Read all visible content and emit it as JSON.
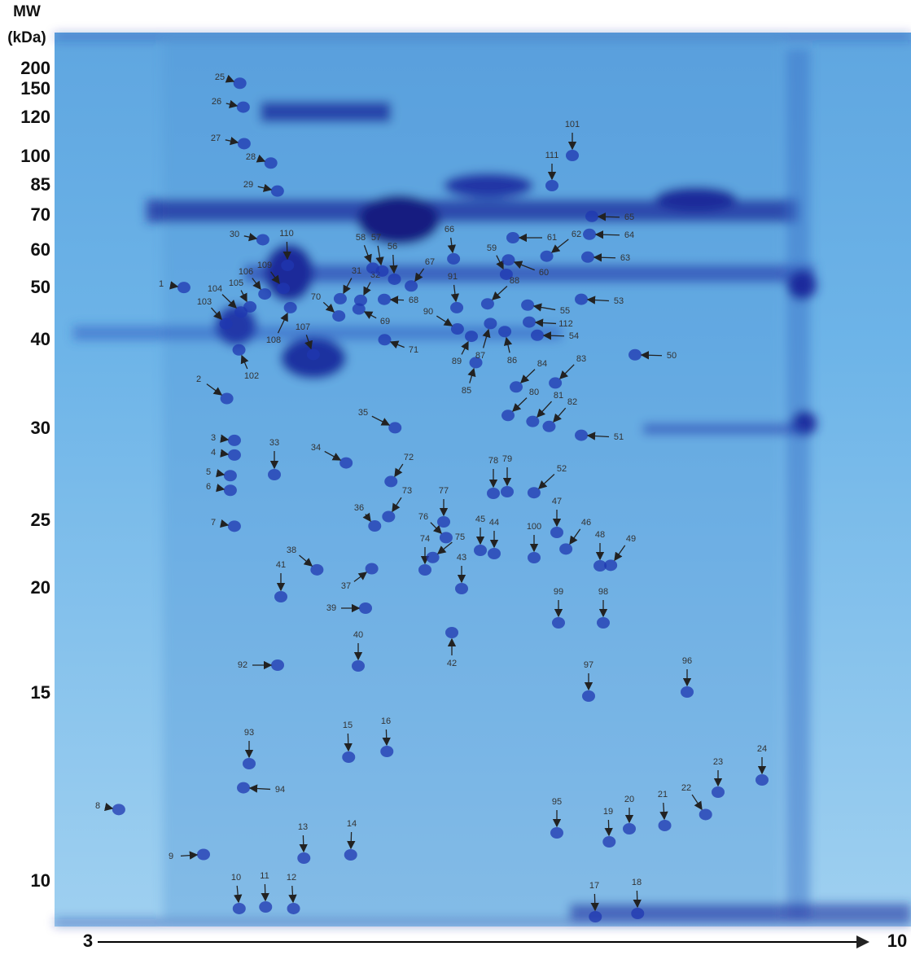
{
  "mw_axis": {
    "title": "MW",
    "unit": "(kDa)",
    "labels": [
      "200",
      "150",
      "120",
      "100",
      "85",
      "70",
      "60",
      "50",
      "40",
      "30",
      "25",
      "20",
      "15",
      "10"
    ]
  },
  "ph_axis": {
    "start": "3",
    "end": "10"
  },
  "spot_labels": [
    "1",
    "2",
    "3",
    "4",
    "5",
    "6",
    "7",
    "8",
    "9",
    "10",
    "11",
    "12",
    "13",
    "14",
    "15",
    "16",
    "17",
    "18",
    "19",
    "20",
    "21",
    "22",
    "23",
    "24",
    "25",
    "26",
    "27",
    "28",
    "29",
    "30",
    "31",
    "32",
    "33",
    "34",
    "35",
    "36",
    "37",
    "38",
    "39",
    "40",
    "41",
    "42",
    "43",
    "44",
    "45",
    "46",
    "47",
    "48",
    "49",
    "50",
    "51",
    "52",
    "53",
    "54",
    "55",
    "56",
    "57",
    "58",
    "59",
    "60",
    "61",
    "62",
    "63",
    "64",
    "65",
    "66",
    "67",
    "68",
    "69",
    "70",
    "71",
    "72",
    "73",
    "74",
    "75",
    "76",
    "77",
    "78",
    "79",
    "80",
    "81",
    "82",
    "83",
    "84",
    "85",
    "86",
    "87",
    "88",
    "89",
    "90",
    "91",
    "92",
    "93",
    "94",
    "95",
    "96",
    "97",
    "98",
    "99",
    "100",
    "101",
    "102",
    "103",
    "104",
    "105",
    "106",
    "107",
    "108",
    "109",
    "110",
    "111",
    "112"
  ]
}
